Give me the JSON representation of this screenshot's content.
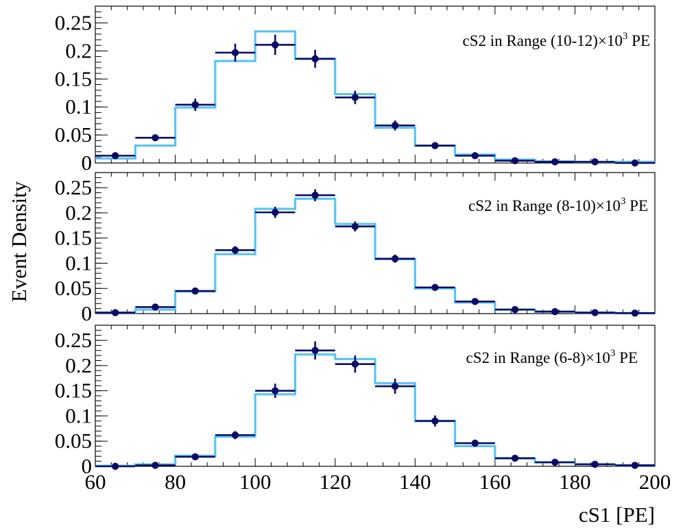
{
  "chart_data": {
    "type": "histogram",
    "xlabel": "cS1  [PE]",
    "ylabel": "Event Density",
    "xlim": [
      60,
      200
    ],
    "x_ticks": [
      "60",
      "80",
      "100",
      "120",
      "140",
      "160",
      "180",
      "200"
    ],
    "ylim": [
      0,
      0.28
    ],
    "y_ticks": [
      "0",
      "0.05",
      "0.1",
      "0.15",
      "0.2",
      "0.25"
    ],
    "bin_edges": [
      60,
      70,
      80,
      90,
      100,
      110,
      120,
      130,
      140,
      150,
      160,
      170,
      180,
      190,
      200
    ],
    "colors": {
      "data": "#0b0b66",
      "model": "#5bc4f0"
    },
    "panels": [
      {
        "label_main": "cS2 in Range (10-12)×10",
        "label_exp": "3",
        "label_unit": " PE",
        "data_values": [
          0.013,
          0.045,
          0.104,
          0.197,
          0.211,
          0.186,
          0.117,
          0.067,
          0.031,
          0.013,
          0.004,
          0.002,
          0.002,
          0.0
        ],
        "data_errors": [
          0.004,
          0.006,
          0.011,
          0.016,
          0.018,
          0.016,
          0.012,
          0.009,
          0.005,
          0.003,
          0.002,
          0.001,
          0.001,
          0.001
        ],
        "model_values": [
          0.008,
          0.031,
          0.099,
          0.182,
          0.235,
          0.186,
          0.123,
          0.063,
          0.031,
          0.015,
          0.006,
          0.003,
          0.002,
          0.002
        ]
      },
      {
        "label_main": "cS2 in Range (8-10)×10",
        "label_exp": "3",
        "label_unit": "  PE",
        "data_values": [
          0.002,
          0.013,
          0.045,
          0.126,
          0.201,
          0.235,
          0.173,
          0.109,
          0.052,
          0.024,
          0.008,
          0.004,
          0.002,
          0.001
        ],
        "data_errors": [
          0.001,
          0.003,
          0.004,
          0.008,
          0.011,
          0.012,
          0.01,
          0.008,
          0.005,
          0.003,
          0.002,
          0.001,
          0.001,
          0.001
        ],
        "model_values": [
          0.002,
          0.008,
          0.044,
          0.118,
          0.208,
          0.228,
          0.178,
          0.108,
          0.05,
          0.022,
          0.008,
          0.004,
          0.002,
          0.001
        ]
      },
      {
        "label_main": "cS2 in Range (6-8)×10",
        "label_exp": "3",
        "label_unit": "  PE",
        "data_values": [
          0.0,
          0.002,
          0.019,
          0.062,
          0.15,
          0.23,
          0.203,
          0.159,
          0.09,
          0.046,
          0.016,
          0.008,
          0.004,
          0.002
        ],
        "data_errors": [
          0.001,
          0.001,
          0.004,
          0.008,
          0.014,
          0.018,
          0.017,
          0.015,
          0.011,
          0.007,
          0.004,
          0.003,
          0.002,
          0.001
        ],
        "model_values": [
          0.001,
          0.004,
          0.021,
          0.059,
          0.143,
          0.222,
          0.213,
          0.165,
          0.09,
          0.04,
          0.016,
          0.008,
          0.004,
          0.002
        ]
      }
    ]
  }
}
